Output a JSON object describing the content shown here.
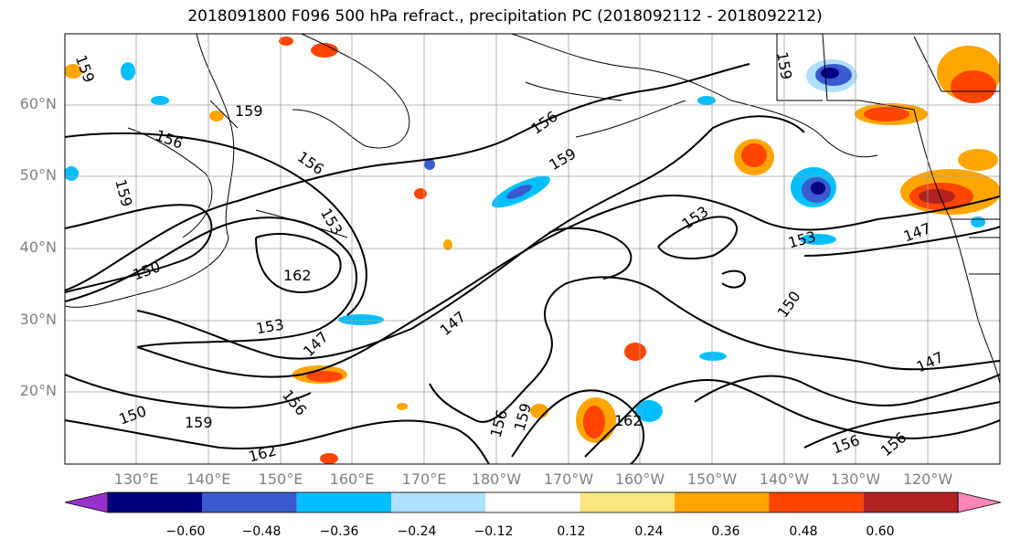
{
  "title": "2018091800 F096 500 hPa refract., precipitation PC (2018092112 - 2018092212)",
  "lat_labels": [
    "60°N",
    "50°N",
    "40°N",
    "30°N",
    "20°N"
  ],
  "lon_labels": [
    "130°E",
    "140°E",
    "150°E",
    "160°E",
    "170°E",
    "180°W",
    "170°W",
    "160°W",
    "150°W",
    "140°W",
    "130°W",
    "120°W"
  ],
  "colorbar": {
    "ticks": [
      "−0.60",
      "−0.48",
      "−0.36",
      "−0.24",
      "−0.12",
      "0.12",
      "0.24",
      "0.36",
      "0.48",
      "0.60"
    ],
    "colors": [
      "#9932cc",
      "#000080",
      "#3a5bcf",
      "#00bfff",
      "#b0e0ff",
      "#ffffff",
      "#ffe680",
      "#ffa500",
      "#ff4500",
      "#b22222",
      "#ff85b4"
    ]
  },
  "contour_labels": [
    "159",
    "159",
    "156",
    "156",
    "153",
    "150",
    "159",
    "162",
    "153",
    "147",
    "156",
    "150",
    "159",
    "162",
    "156",
    "159",
    "156",
    "159",
    "147",
    "153",
    "150",
    "153",
    "147",
    "156",
    "156",
    "162",
    "159"
  ]
}
